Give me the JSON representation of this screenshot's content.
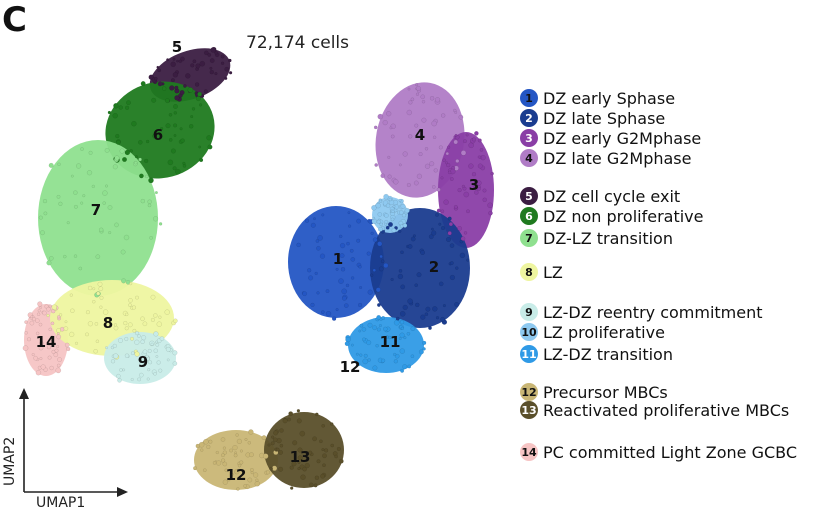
{
  "panel_letter": "C",
  "cell_count_label": "72,174 cells",
  "chart_data": {
    "type": "scatter",
    "xlabel": "UMAP1",
    "ylabel": "UMAP2",
    "grid": false,
    "legend_position": "right",
    "clusters": [
      {
        "id": "1",
        "label": "DZ early Sphase",
        "color": "#2456c4",
        "text_color": "#111111"
      },
      {
        "id": "2",
        "label": "DZ late Sphase",
        "color": "#1a3c8f",
        "text_color": "#ffffff"
      },
      {
        "id": "3",
        "label": "DZ early G2Mphase",
        "color": "#8a3ea6",
        "text_color": "#ffffff"
      },
      {
        "id": "4",
        "label": "DZ late G2Mphase",
        "color": "#b07cc6",
        "text_color": "#111111"
      },
      {
        "id": "5",
        "label": "DZ cell cycle exit",
        "color": "#3b1d42",
        "text_color": "#ffffff"
      },
      {
        "id": "6",
        "label": "DZ non proliferative",
        "color": "#1f7a1f",
        "text_color": "#ffffff"
      },
      {
        "id": "7",
        "label": "DZ-LZ transition",
        "color": "#8fe08f",
        "text_color": "#111111"
      },
      {
        "id": "8",
        "label": "LZ",
        "color": "#eef5a0",
        "text_color": "#111111"
      },
      {
        "id": "9",
        "label": "LZ-DZ reentry commitment",
        "color": "#c8ece8",
        "text_color": "#111111"
      },
      {
        "id": "10",
        "label": "LZ proliferative",
        "color": "#8ec9f0",
        "text_color": "#111111"
      },
      {
        "id": "11",
        "label": "LZ-DZ transition",
        "color": "#2f9ae6",
        "text_color": "#ffffff"
      },
      {
        "id": "12",
        "label": "Precursor MBCs",
        "color": "#c9b675",
        "text_color": "#111111"
      },
      {
        "id": "13",
        "label": "Reactivated proliferative MBCs",
        "color": "#5a4f2a",
        "text_color": "#ffffff"
      },
      {
        "id": "14",
        "label": "PC committed Light Zone GCBC",
        "color": "#f6c4c4",
        "text_color": "#111111"
      }
    ],
    "cluster_map_labels": [
      "5",
      "6",
      "7",
      "8",
      "9",
      "14",
      "4",
      "3",
      "1",
      "2",
      "11",
      "12",
      "12",
      "13"
    ]
  }
}
